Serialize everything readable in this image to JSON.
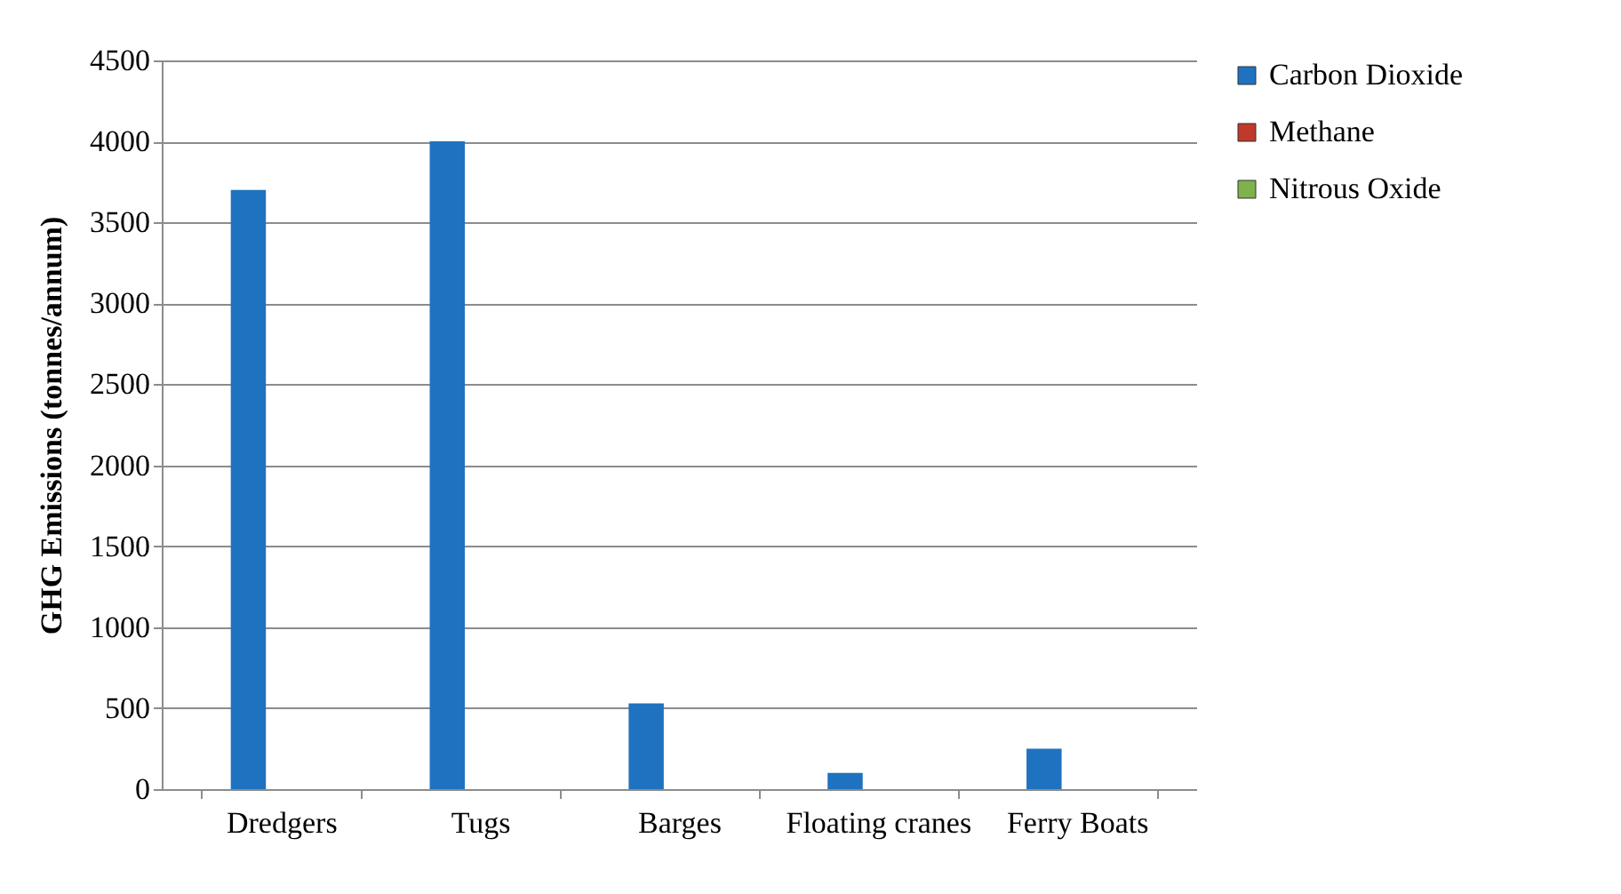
{
  "chart_data": {
    "type": "bar",
    "ylabel": "GHG Emissions (tonnes/annum)",
    "categories": [
      "Dredgers",
      "Tugs",
      "Barges",
      "Floating cranes",
      "Ferry Boats"
    ],
    "series": [
      {
        "name": "Carbon Dioxide",
        "color": "#1f72c0",
        "values": [
          3700,
          4000,
          530,
          100,
          250
        ]
      },
      {
        "name": "Methane",
        "color": "#c0392b",
        "values": [
          0,
          0,
          0,
          0,
          0
        ]
      },
      {
        "name": "Nitrous Oxide",
        "color": "#7fb24a",
        "values": [
          0,
          0,
          0,
          0,
          0
        ]
      }
    ],
    "ylim": [
      0,
      4500
    ],
    "yticks": [
      0,
      500,
      1000,
      1500,
      2000,
      2500,
      3000,
      3500,
      4000,
      4500
    ],
    "grid": "y",
    "legend": "right"
  }
}
